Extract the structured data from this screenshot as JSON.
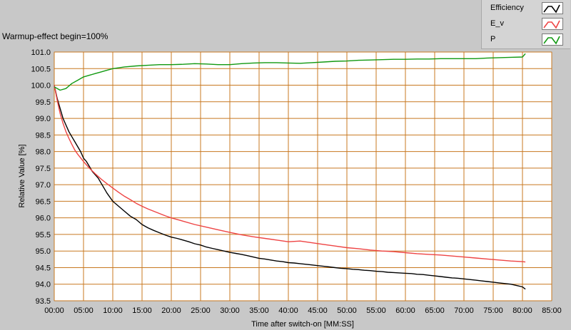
{
  "chart_title": "Warmup-effect begin=100%",
  "legend": [
    {
      "label": "Efficiency",
      "color": "#000000"
    },
    {
      "label": "E_v",
      "color": "#ee4444"
    },
    {
      "label": "P",
      "color": "#119911"
    }
  ],
  "chart_data": {
    "type": "line",
    "title": "Warmup-effect begin=100%",
    "xlabel": "Time after switch-on [MM:SS]",
    "ylabel": "Relative Value [%]",
    "xlim": [
      0,
      85
    ],
    "ylim": [
      93.5,
      101.0
    ],
    "x_unit": "minutes",
    "x_ticks": [
      "00:00",
      "05:00",
      "10:00",
      "15:00",
      "20:00",
      "25:00",
      "30:00",
      "35:00",
      "40:00",
      "45:00",
      "50:00",
      "55:00",
      "60:00",
      "65:00",
      "70:00",
      "75:00",
      "80:00",
      "85:00"
    ],
    "y_ticks": [
      "93.5",
      "94.0",
      "94.5",
      "95.0",
      "95.5",
      "96.0",
      "96.5",
      "97.0",
      "97.5",
      "98.0",
      "98.5",
      "99.0",
      "99.5",
      "100.0",
      "100.5",
      "101.0"
    ],
    "grid": true,
    "legend_position": "top-right",
    "series": [
      {
        "name": "Efficiency",
        "color": "#000000",
        "x": [
          0,
          0.5,
          1,
          1.5,
          2,
          2.5,
          3,
          3.5,
          4,
          4.5,
          5,
          5.5,
          6,
          6.5,
          7,
          7.5,
          8,
          8.5,
          9,
          10,
          11,
          12,
          13,
          14,
          15,
          16,
          17,
          18,
          19,
          20,
          21,
          22,
          23,
          24,
          25,
          26,
          27,
          28,
          29,
          30,
          31,
          32,
          33,
          34,
          35,
          36,
          37,
          38,
          39,
          40,
          41,
          42,
          43,
          44,
          45,
          46,
          47,
          48,
          49,
          50,
          51,
          52,
          53,
          54,
          55,
          56,
          57,
          58,
          59,
          60,
          61,
          62,
          63,
          64,
          65,
          66,
          67,
          68,
          69,
          70,
          71,
          72,
          73,
          74,
          75,
          76,
          77,
          78,
          79,
          80,
          80.5
        ],
        "y": [
          100.0,
          99.6,
          99.3,
          99.0,
          98.8,
          98.6,
          98.45,
          98.3,
          98.15,
          98.0,
          97.8,
          97.7,
          97.55,
          97.4,
          97.3,
          97.2,
          97.05,
          96.9,
          96.75,
          96.5,
          96.35,
          96.2,
          96.05,
          95.95,
          95.8,
          95.7,
          95.62,
          95.55,
          95.48,
          95.42,
          95.38,
          95.33,
          95.28,
          95.22,
          95.18,
          95.12,
          95.08,
          95.04,
          95.0,
          94.96,
          94.93,
          94.9,
          94.86,
          94.82,
          94.78,
          94.76,
          94.73,
          94.7,
          94.68,
          94.65,
          94.64,
          94.62,
          94.6,
          94.58,
          94.56,
          94.54,
          94.52,
          94.5,
          94.48,
          94.47,
          94.45,
          94.44,
          94.42,
          94.41,
          94.39,
          94.38,
          94.36,
          94.35,
          94.34,
          94.33,
          94.32,
          94.3,
          94.29,
          94.27,
          94.25,
          94.23,
          94.21,
          94.19,
          94.18,
          94.16,
          94.14,
          94.12,
          94.1,
          94.08,
          94.06,
          94.04,
          94.02,
          94.0,
          93.96,
          93.92,
          93.85
        ]
      },
      {
        "name": "E_v",
        "color": "#ee4444",
        "x": [
          0,
          0.5,
          1,
          1.5,
          2,
          2.5,
          3,
          3.5,
          4,
          5,
          6,
          7,
          8,
          9,
          10,
          11,
          12,
          13,
          14,
          15,
          16,
          17,
          18,
          19,
          20,
          22,
          24,
          26,
          28,
          30,
          32,
          34,
          36,
          38,
          40,
          42,
          44,
          46,
          48,
          50,
          52,
          54,
          56,
          58,
          60,
          62,
          64,
          66,
          68,
          70,
          72,
          74,
          76,
          78,
          80,
          80.5
        ],
        "y": [
          100.0,
          99.55,
          99.15,
          98.85,
          98.6,
          98.4,
          98.22,
          98.05,
          97.92,
          97.7,
          97.5,
          97.33,
          97.17,
          97.03,
          96.9,
          96.77,
          96.65,
          96.55,
          96.44,
          96.35,
          96.27,
          96.2,
          96.13,
          96.06,
          96.0,
          95.9,
          95.8,
          95.72,
          95.64,
          95.56,
          95.49,
          95.43,
          95.38,
          95.33,
          95.28,
          95.3,
          95.25,
          95.2,
          95.15,
          95.1,
          95.07,
          95.03,
          95.0,
          94.98,
          94.95,
          94.92,
          94.9,
          94.88,
          94.85,
          94.82,
          94.79,
          94.76,
          94.73,
          94.7,
          94.68,
          94.67
        ]
      },
      {
        "name": "P",
        "color": "#119911",
        "x": [
          0,
          1,
          2,
          3,
          4,
          5,
          6,
          7,
          8,
          9,
          10,
          12,
          14,
          16,
          18,
          20,
          22,
          24,
          26,
          28,
          30,
          32,
          34,
          36,
          38,
          40,
          42,
          44,
          46,
          48,
          50,
          52,
          54,
          56,
          58,
          60,
          62,
          64,
          66,
          68,
          70,
          72,
          74,
          76,
          78,
          80,
          80.5
        ],
        "y": [
          99.95,
          99.85,
          99.9,
          100.05,
          100.15,
          100.25,
          100.3,
          100.35,
          100.4,
          100.45,
          100.5,
          100.55,
          100.58,
          100.6,
          100.62,
          100.62,
          100.63,
          100.65,
          100.64,
          100.62,
          100.62,
          100.65,
          100.67,
          100.68,
          100.68,
          100.67,
          100.66,
          100.68,
          100.7,
          100.72,
          100.73,
          100.75,
          100.76,
          100.77,
          100.78,
          100.78,
          100.79,
          100.79,
          100.8,
          100.8,
          100.8,
          100.8,
          100.82,
          100.83,
          100.84,
          100.85,
          100.95
        ]
      }
    ]
  }
}
